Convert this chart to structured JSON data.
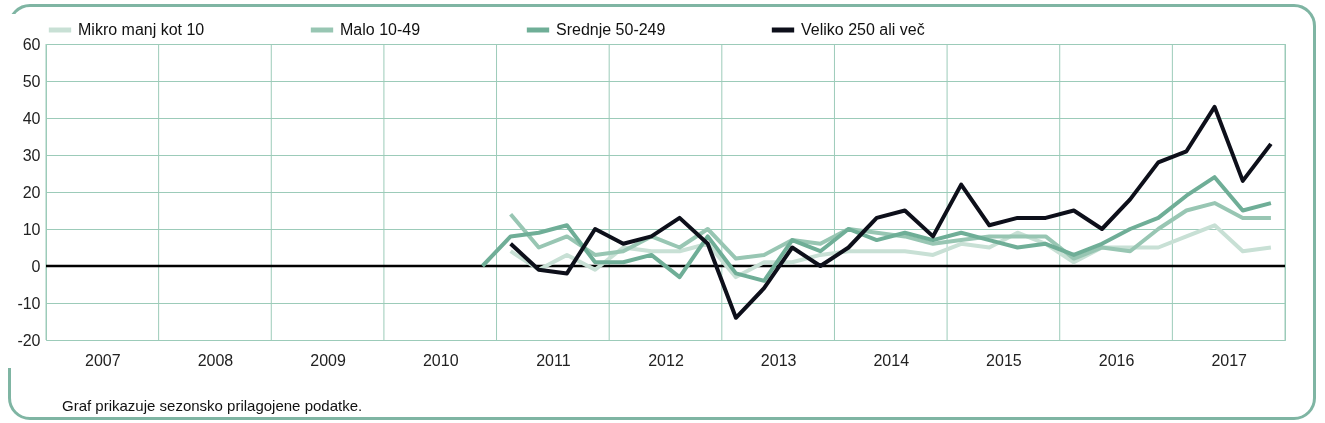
{
  "chart_data": {
    "type": "line",
    "annotations": [
      "Graf prikazuje sezonsko prilagojene podatke."
    ],
    "xlim": [
      2007,
      2018
    ],
    "xticks": [
      {
        "value": 2007,
        "label": null
      },
      {
        "value": 2007.5,
        "label": "2007"
      },
      {
        "value": 2008,
        "label": null
      },
      {
        "value": 2008.5,
        "label": "2008"
      },
      {
        "value": 2009,
        "label": null
      },
      {
        "value": 2009.5,
        "label": "2009"
      },
      {
        "value": 2010,
        "label": null
      },
      {
        "value": 2010.5,
        "label": "2010"
      },
      {
        "value": 2011,
        "label": null
      },
      {
        "value": 2011.5,
        "label": "2011"
      },
      {
        "value": 2012,
        "label": null
      },
      {
        "value": 2012.5,
        "label": "2012"
      },
      {
        "value": 2013,
        "label": null
      },
      {
        "value": 2013.5,
        "label": "2013"
      },
      {
        "value": 2014,
        "label": null
      },
      {
        "value": 2014.5,
        "label": "2014"
      },
      {
        "value": 2015,
        "label": null
      },
      {
        "value": 2015.5,
        "label": "2015"
      },
      {
        "value": 2016,
        "label": null
      },
      {
        "value": 2016.5,
        "label": "2016"
      },
      {
        "value": 2017,
        "label": null
      },
      {
        "value": 2017.5,
        "label": "2017"
      },
      {
        "value": 2018,
        "label": null
      }
    ],
    "ylim": [
      -20,
      60
    ],
    "yticks": [
      -20,
      -10,
      0,
      10,
      20,
      30,
      40,
      50,
      60
    ],
    "grid": true,
    "legend": "top",
    "line_style": "solid",
    "ref_lines": [
      {
        "axis": "y",
        "value": 0,
        "color": "#000000"
      }
    ],
    "series": [
      {
        "name": "Mikro manj kot 10",
        "color": "#c8e0d5",
        "x": [
          2011.125,
          2011.375,
          2011.625,
          2011.875,
          2012.125,
          2012.375,
          2012.625,
          2012.875,
          2013.125,
          2013.375,
          2013.625,
          2013.875,
          2014.125,
          2014.375,
          2014.625,
          2014.875,
          2015.125,
          2015.375,
          2015.625,
          2015.875,
          2016.125,
          2016.375,
          2016.625,
          2016.875,
          2017.125,
          2017.375,
          2017.625,
          2017.875
        ],
        "values": [
          4,
          -1,
          3,
          -1,
          5,
          4,
          4,
          6,
          -3,
          1,
          1,
          3,
          4,
          4,
          4,
          3,
          6,
          5,
          9,
          6,
          1,
          5,
          5,
          5,
          8,
          11,
          4,
          5
        ]
      },
      {
        "name": "Malo 10-49",
        "color": "#98c6b3",
        "x": [
          2011.125,
          2011.375,
          2011.625,
          2011.875,
          2012.125,
          2012.375,
          2012.625,
          2012.875,
          2013.125,
          2013.375,
          2013.625,
          2013.875,
          2014.125,
          2014.375,
          2014.625,
          2014.875,
          2015.125,
          2015.375,
          2015.625,
          2015.875,
          2016.125,
          2016.375,
          2016.625,
          2016.875,
          2017.125,
          2017.375,
          2017.625,
          2017.875
        ],
        "values": [
          14,
          5,
          8,
          3,
          4,
          8,
          5,
          10,
          2,
          3,
          7,
          6,
          10,
          9,
          8,
          6,
          7,
          8,
          8,
          8,
          2,
          5,
          4,
          10,
          15,
          17,
          13,
          13
        ]
      },
      {
        "name": "Srednje 50-249",
        "color": "#6fae97",
        "x": [
          2010.875,
          2011.125,
          2011.375,
          2011.625,
          2011.875,
          2012.125,
          2012.375,
          2012.625,
          2012.875,
          2013.125,
          2013.375,
          2013.625,
          2013.875,
          2014.125,
          2014.375,
          2014.625,
          2014.875,
          2015.125,
          2015.375,
          2015.625,
          2015.875,
          2016.125,
          2016.375,
          2016.625,
          2016.875,
          2017.125,
          2017.375,
          2017.625,
          2017.875
        ],
        "values": [
          0,
          8,
          9,
          11,
          1,
          1,
          3,
          -3,
          8,
          -2,
          -4,
          7,
          4,
          10,
          7,
          9,
          7,
          9,
          7,
          5,
          6,
          3,
          6,
          10,
          13,
          19,
          24,
          15,
          17
        ]
      },
      {
        "name": "Veliko 250 ali več",
        "color": "#0d0f1a",
        "x": [
          2011.125,
          2011.375,
          2011.625,
          2011.875,
          2012.125,
          2012.375,
          2012.625,
          2012.875,
          2013.125,
          2013.375,
          2013.625,
          2013.875,
          2014.125,
          2014.375,
          2014.625,
          2014.875,
          2015.125,
          2015.375,
          2015.625,
          2015.875,
          2016.125,
          2016.375,
          2016.625,
          2016.875,
          2017.125,
          2017.375,
          2017.625,
          2017.875
        ],
        "values": [
          6,
          -1,
          -2,
          10,
          6,
          8,
          13,
          6,
          -14,
          -6,
          5,
          0,
          5,
          13,
          15,
          8,
          22,
          11,
          13,
          13,
          15,
          10,
          18,
          28,
          31,
          43,
          23,
          33
        ]
      }
    ]
  }
}
